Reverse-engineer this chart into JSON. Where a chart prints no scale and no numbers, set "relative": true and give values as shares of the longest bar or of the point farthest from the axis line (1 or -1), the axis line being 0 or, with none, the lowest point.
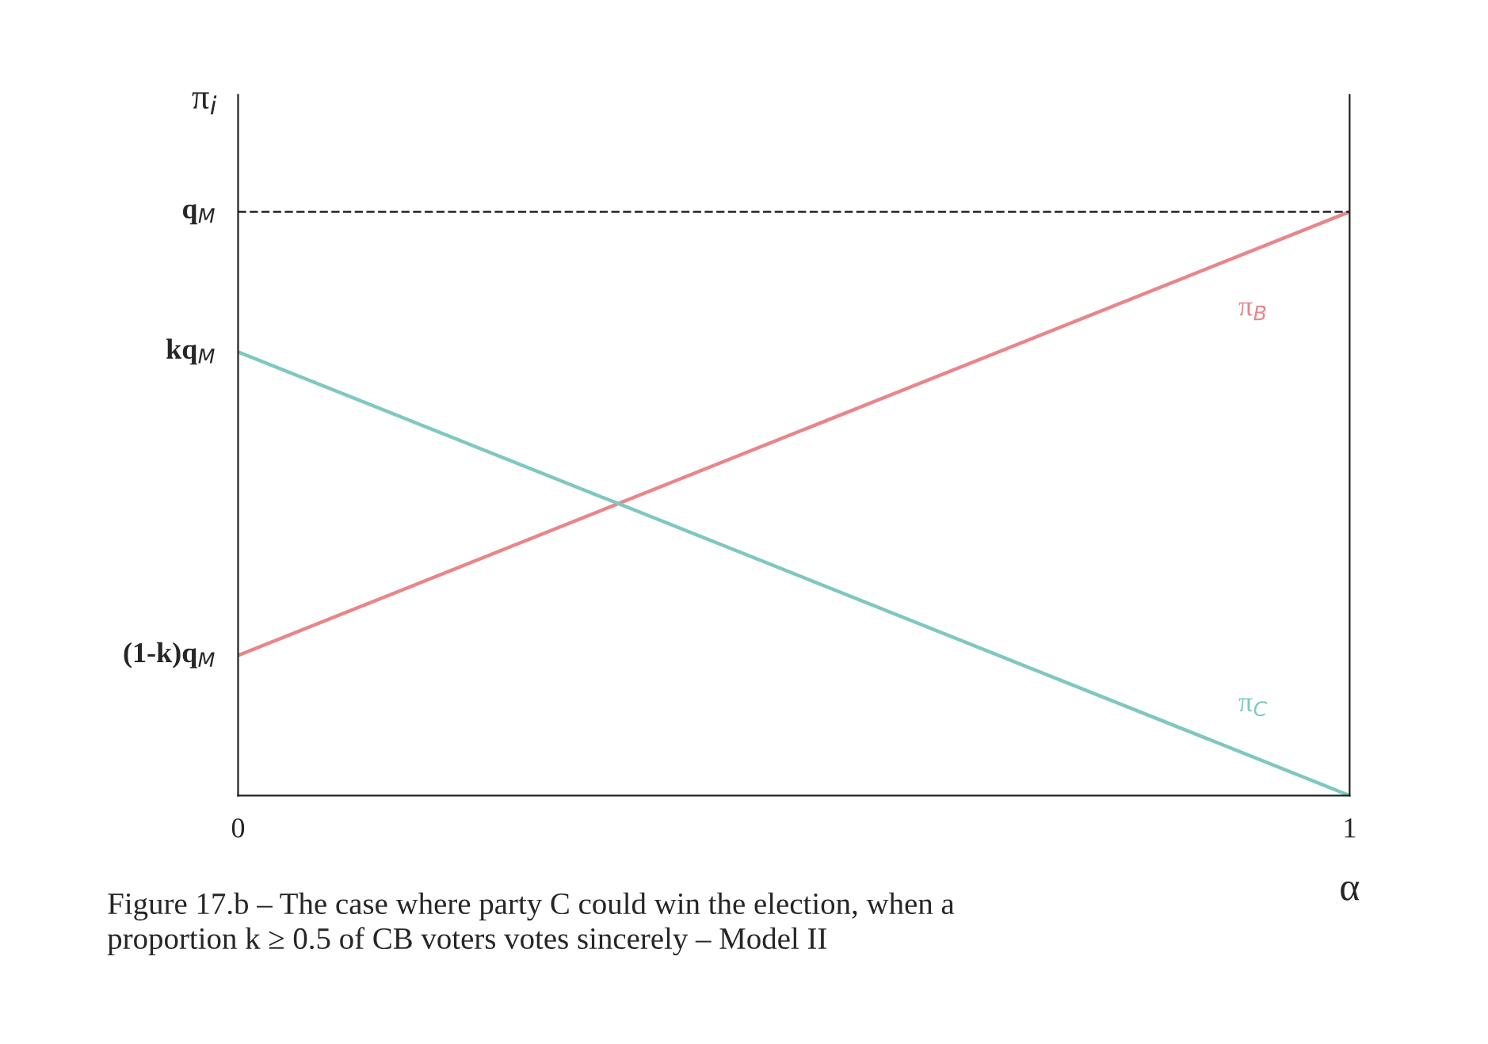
{
  "chart_data": {
    "type": "line",
    "relative": true,
    "xlabel": "α",
    "ylabel": "π$_{i}$",
    "x": [
      0,
      1
    ],
    "series": [
      {
        "name": "π$_{B}$",
        "color": "#e8868a",
        "values": [
          0.24,
          1
        ]
      },
      {
        "name": "π$_{C}$",
        "color": "#7fc8c0",
        "values": [
          0.76,
          0
        ]
      }
    ],
    "xlim": [
      0,
      1
    ],
    "xticks": [
      0,
      1
    ],
    "ref_lines": [
      {
        "axis": "y",
        "value": 1,
        "label": "q$_{M}$",
        "color": "#333333",
        "line_style": "dashed"
      }
    ],
    "grid": false,
    "legend": false,
    "marker": "none",
    "line_style": "solid",
    "annotations": [
      {
        "text": "kq$_{M}$",
        "x": 0,
        "y": 0.76
      },
      {
        "text": "(1-k)q$_{M}$",
        "x": 0,
        "y": 0.24
      },
      "Figure 17.b – The case where party C could win the election, when a\nproportion k ≥ 0.5 of CB voters votes sincerely – Model II"
    ]
  }
}
